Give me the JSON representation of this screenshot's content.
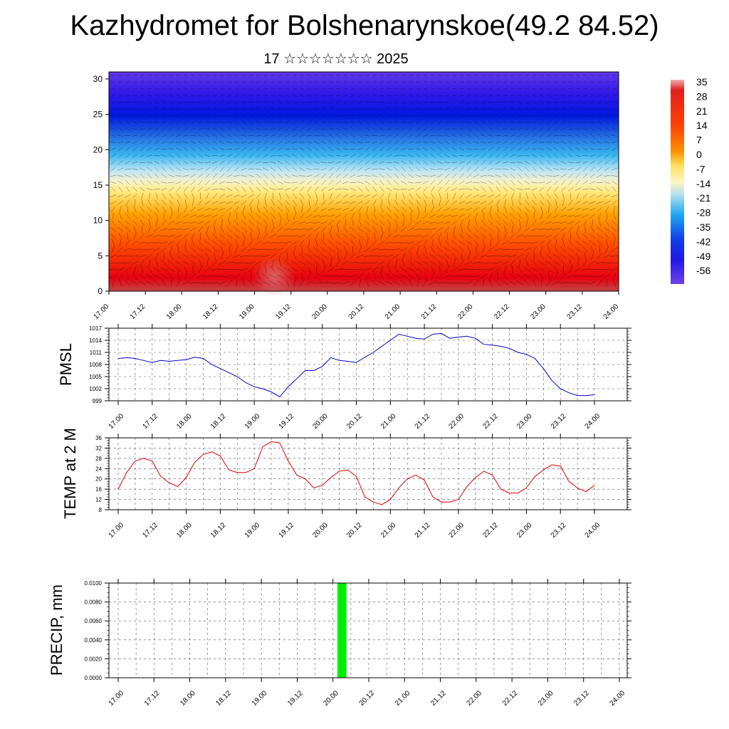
{
  "header": {
    "title": "Kazhydromet for Bolshenarynskoe(49.2 84.52)",
    "subtitle": "17 ☆☆☆☆☆☆☆ 2025"
  },
  "colors": {
    "pmsl_line": "#0000cc",
    "temp_line": "#dd0000",
    "precip_bar": "#00ee00"
  },
  "chart_data": [
    {
      "type": "heatmap",
      "title": "",
      "x_labels": [
        "17.00",
        "17.12",
        "18.00",
        "18.12",
        "19.00",
        "19.12",
        "20.00",
        "20.12",
        "21.00",
        "21.12",
        "22.00",
        "22.12",
        "23.00",
        "23.12",
        "24.00"
      ],
      "y_ticks": [
        0,
        5,
        10,
        15,
        20,
        25,
        30
      ],
      "ylim": [
        0,
        31
      ],
      "colorbar_labels": [
        "35",
        "28",
        "21",
        "14",
        "7",
        "0",
        "-7",
        "-14",
        "-21",
        "-28",
        "-35",
        "-42",
        "-49",
        "-56"
      ],
      "colorbar_range": [
        -60,
        38
      ]
    },
    {
      "type": "line",
      "ylabel": "PMSL",
      "x_labels": [
        "17.00",
        "17.12",
        "18.00",
        "18.12",
        "19.00",
        "19.12",
        "20.00",
        "20.12",
        "21.00",
        "21.12",
        "22.00",
        "22.12",
        "23.00",
        "23.12",
        "24.00"
      ],
      "y_ticks": [
        999,
        1002,
        1005,
        1008,
        1011,
        1014,
        1017
      ],
      "ylim": [
        999,
        1017
      ],
      "series": [
        {
          "values": [
            1009.5,
            1009.7,
            1009.5,
            1009.0,
            1008.5,
            1009.0,
            1008.8,
            1009.0,
            1009.2,
            1009.8,
            1009.5,
            1008.0,
            1007.0,
            1006.0,
            1005.0,
            1003.5,
            1002.5,
            1002.0,
            1001.2,
            1000.0,
            1002.5,
            1004.5,
            1006.5,
            1006.5,
            1007.5,
            1009.7,
            1009.0,
            1008.8,
            1008.5,
            1009.8,
            1011.0,
            1012.5,
            1014.0,
            1015.5,
            1015.0,
            1014.5,
            1014.3,
            1015.5,
            1015.7,
            1014.5,
            1014.8,
            1015.0,
            1014.5,
            1013.0,
            1012.8,
            1012.5,
            1012.0,
            1011.0,
            1010.5,
            1009.5,
            1007.0,
            1004.0,
            1002.0,
            1001.0,
            1000.3,
            1000.3,
            1000.5
          ]
        }
      ]
    },
    {
      "type": "line",
      "ylabel": "TEMP at 2 M",
      "x_labels": [
        "17.00",
        "17.12",
        "18.00",
        "18.12",
        "19.00",
        "19.12",
        "20.00",
        "20.12",
        "21.00",
        "21.12",
        "22.00",
        "22.12",
        "23.00",
        "23.12",
        "24.00"
      ],
      "y_ticks": [
        8,
        12,
        16,
        20,
        24,
        28,
        32,
        36
      ],
      "ylim": [
        8,
        36
      ],
      "series": [
        {
          "values": [
            16.0,
            22.5,
            27.0,
            28.0,
            27.0,
            21.0,
            18.5,
            17.0,
            20.5,
            26.5,
            29.5,
            30.5,
            29.0,
            23.5,
            22.5,
            22.5,
            24.0,
            32.5,
            34.5,
            34.0,
            27.0,
            21.5,
            20.0,
            16.5,
            17.5,
            20.5,
            23.0,
            23.5,
            21.0,
            13.0,
            11.0,
            10.0,
            12.0,
            16.5,
            20.0,
            21.5,
            19.5,
            13.0,
            11.0,
            11.0,
            12.0,
            17.0,
            20.5,
            23.0,
            21.5,
            16.0,
            14.5,
            14.5,
            16.5,
            21.0,
            23.5,
            25.5,
            25.0,
            19.0,
            16.5,
            15.0,
            17.5
          ]
        }
      ]
    },
    {
      "type": "bar",
      "ylabel": "PRECIP, mm",
      "x_labels": [
        "17.00",
        "17.12",
        "18.00",
        "18.12",
        "19.00",
        "19.12",
        "20.00",
        "20.12",
        "21.00",
        "21.12",
        "22.00",
        "22.12",
        "23.00",
        "23.12",
        "24.00"
      ],
      "y_ticks": [
        "0.0000",
        "0.0020",
        "0.0040",
        "0.0060",
        "0.0080",
        "0.0100"
      ],
      "ylim": [
        0,
        0.01
      ],
      "bars": [
        {
          "x_hour": 75,
          "width_hours": 3,
          "value": 0.01
        }
      ]
    }
  ]
}
